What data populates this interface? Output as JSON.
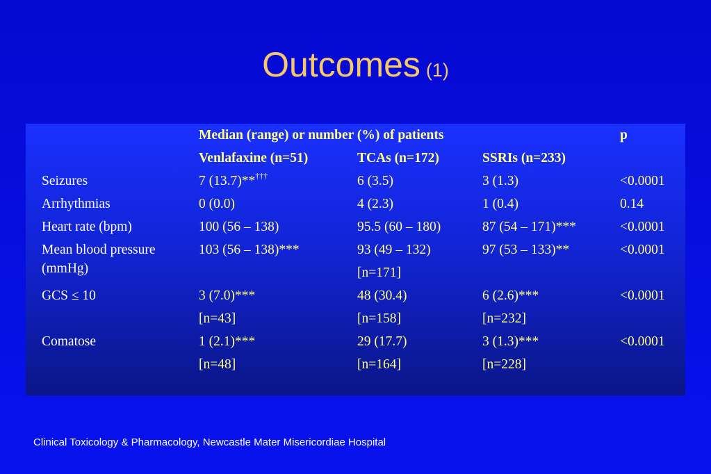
{
  "title": {
    "main": "Outcomes",
    "sub": "(1)"
  },
  "table": {
    "header_group": "Median (range) or number (%) of patients",
    "p_header": "p",
    "columns": [
      "Venlafaxine (n=51)",
      "TCAs (n=172)",
      "SSRIs (n=233)"
    ],
    "rows": [
      {
        "label": "Seizures",
        "venlafaxine": "7 (13.7)**",
        "venlafaxine_sup": "†††",
        "tcas": "6 (3.5)",
        "ssris": "3 (1.3)",
        "p": "<0.0001"
      },
      {
        "label": "Arrhythmias",
        "venlafaxine": "0 (0.0)",
        "tcas": "4 (2.3)",
        "ssris": "1 (0.4)",
        "p": "0.14"
      },
      {
        "label": "Heart rate (bpm)",
        "venlafaxine": "100 (56 – 138)",
        "tcas": "95.5 (60 – 180)",
        "ssris": "87 (54 – 171)***",
        "p": "<0.0001"
      },
      {
        "label": "Mean blood pressure",
        "venlafaxine": "103 (56 – 138)***",
        "tcas": "93 (49 – 132)",
        "ssris": "97 (53 – 133)**",
        "p": "<0.0001"
      },
      {
        "label": "(mmHg)",
        "venlafaxine": "",
        "tcas": "[n=171]",
        "ssris": "",
        "p": ""
      },
      {
        "label": "GCS ≤ 10",
        "venlafaxine": "3 (7.0)***",
        "tcas": "48 (30.4)",
        "ssris": "6 (2.6)***",
        "p": "<0.0001"
      },
      {
        "label": "",
        "venlafaxine": "[n=43]",
        "tcas": "[n=158]",
        "ssris": "[n=232]",
        "p": ""
      },
      {
        "label": "Comatose",
        "venlafaxine": "1 (2.1)***",
        "tcas": "29 (17.7)",
        "ssris": "3 (1.3)***",
        "p": "<0.0001"
      },
      {
        "label": "",
        "venlafaxine": "[n=48]",
        "tcas": "[n=164]",
        "ssris": "[n=228]",
        "p": ""
      }
    ]
  },
  "footer": "Clinical Toxicology & Pharmacology, Newcastle Mater Misericordiae Hospital"
}
